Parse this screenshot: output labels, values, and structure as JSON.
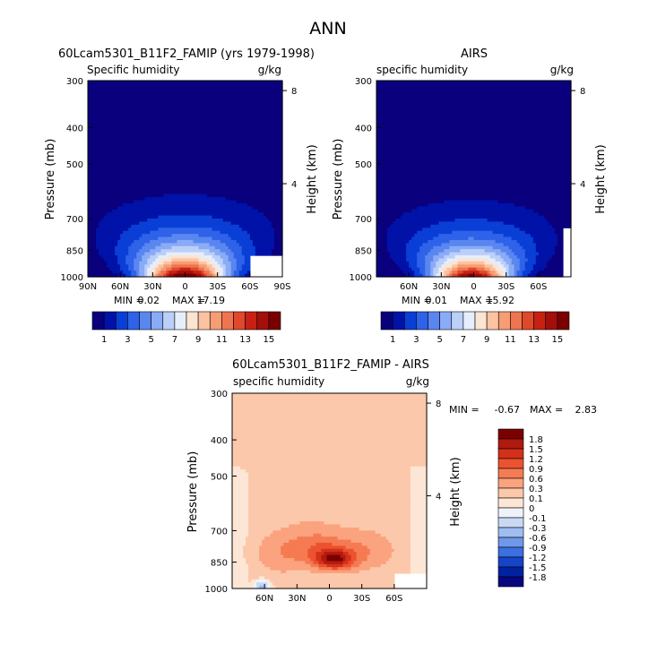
{
  "figure_title": "ANN",
  "chart_data": [
    {
      "type": "heatmap",
      "title": "60Lcam5301_B11F2_FAMIP (yrs 1979-1998)",
      "subtitle_left": "Specific humidity",
      "subtitle_right": "g/kg",
      "ylabel": "Pressure (mb)",
      "ylabel_right": "Height (km)",
      "x_ticks": [
        "90N",
        "60N",
        "30N",
        "0",
        "30S",
        "60S",
        "90S"
      ],
      "x_values": [
        90,
        60,
        30,
        0,
        -30,
        -60,
        -90
      ],
      "y_ticks": [
        "300",
        "400",
        "500",
        "700",
        "850",
        "1000"
      ],
      "y_values": [
        300,
        400,
        500,
        700,
        850,
        1000
      ],
      "y_right_ticks": [
        "8",
        "4"
      ],
      "y_right_values": [
        8,
        4
      ],
      "x_range": [
        90,
        -90
      ],
      "y_range": [
        1000,
        300
      ],
      "min_label": "MIN =",
      "min_value": "0.02",
      "max_label": "MAX =",
      "max_value": "17.19",
      "field": {
        "peak": 17.19,
        "peak_lat": 0,
        "base_width_deg": 26,
        "scale_height_hpa": 240
      },
      "missing_regions": [
        "surface south of 60S"
      ],
      "colorbar": {
        "orientation": "horizontal",
        "labels": [
          "1",
          "3",
          "5",
          "7",
          "9",
          "11",
          "13",
          "15"
        ],
        "levels": [
          1,
          2,
          3,
          4,
          5,
          6,
          7,
          8,
          9,
          10,
          11,
          12,
          13,
          14,
          15
        ],
        "colors": [
          "#0a007e",
          "#0012a8",
          "#0a3fd6",
          "#2e62e8",
          "#5a86f0",
          "#8aabf6",
          "#bbcff9",
          "#e6eefc",
          "#fce4d2",
          "#fbc3a2",
          "#f79d73",
          "#ef7550",
          "#e0482c",
          "#c72114",
          "#a30f0b",
          "#7b0000"
        ]
      }
    },
    {
      "type": "heatmap",
      "title": "AIRS",
      "subtitle_left": "specific humidity",
      "subtitle_right": "g/kg",
      "ylabel": "Pressure (mb)",
      "ylabel_right": "Height (km)",
      "x_ticks": [
        "60N",
        "30N",
        "0",
        "30S",
        "60S"
      ],
      "x_values": [
        60,
        30,
        0,
        -30,
        -60
      ],
      "y_ticks": [
        "300",
        "400",
        "500",
        "700",
        "850",
        "1000"
      ],
      "y_values": [
        300,
        400,
        500,
        700,
        850,
        1000
      ],
      "y_right_ticks": [
        "8",
        "4"
      ],
      "y_right_values": [
        8,
        4
      ],
      "x_range": [
        90,
        -90
      ],
      "y_range": [
        1000,
        300
      ],
      "min_label": "MIN =",
      "min_value": "0.01",
      "max_label": "MAX =",
      "max_value": "15.92",
      "field": {
        "peak": 15.92,
        "peak_lat": 2,
        "base_width_deg": 25,
        "scale_height_hpa": 230
      },
      "missing_regions": [
        "south of 90S edge"
      ],
      "colorbar": {
        "orientation": "horizontal",
        "labels": [
          "1",
          "3",
          "5",
          "7",
          "9",
          "11",
          "13",
          "15"
        ],
        "levels": [
          1,
          2,
          3,
          4,
          5,
          6,
          7,
          8,
          9,
          10,
          11,
          12,
          13,
          14,
          15
        ],
        "colors": [
          "#0a007e",
          "#0012a8",
          "#0a3fd6",
          "#2e62e8",
          "#5a86f0",
          "#8aabf6",
          "#bbcff9",
          "#e6eefc",
          "#fce4d2",
          "#fbc3a2",
          "#f79d73",
          "#ef7550",
          "#e0482c",
          "#c72114",
          "#a30f0b",
          "#7b0000"
        ]
      }
    },
    {
      "type": "heatmap",
      "title": "60Lcam5301_B11F2_FAMIP - AIRS",
      "subtitle_left": "specific humidity",
      "subtitle_right": "g/kg",
      "ylabel": "Pressure (mb)",
      "ylabel_right": "Height (km)",
      "x_ticks": [
        "60N",
        "30N",
        "0",
        "30S",
        "60S"
      ],
      "x_values": [
        60,
        30,
        0,
        -30,
        -60
      ],
      "y_ticks": [
        "300",
        "400",
        "500",
        "700",
        "850",
        "1000"
      ],
      "y_values": [
        300,
        400,
        500,
        700,
        850,
        1000
      ],
      "y_right_ticks": [
        "8",
        "4"
      ],
      "y_right_values": [
        8,
        4
      ],
      "x_range": [
        90,
        -90
      ],
      "y_range": [
        1000,
        300
      ],
      "min_label": "MIN =",
      "min_value": "-0.67",
      "max_label": "MAX =",
      "max_value": "2.83",
      "colorbar": {
        "orientation": "vertical",
        "labels": [
          "1.8",
          "1.5",
          "1.2",
          "0.9",
          "0.6",
          "0.3",
          "0.1",
          "0",
          "-0.1",
          "-0.3",
          "-0.6",
          "-0.9",
          "-1.2",
          "-1.5",
          "-1.8"
        ],
        "levels": [
          1.8,
          1.5,
          1.2,
          0.9,
          0.6,
          0.3,
          0.1,
          0,
          -0.1,
          -0.3,
          -0.6,
          -0.9,
          -1.2,
          -1.5,
          -1.8
        ],
        "colors": [
          "#7b0000",
          "#b01a0f",
          "#d4301a",
          "#ec5230",
          "#f57b52",
          "#fba27e",
          "#fcc8ab",
          "#fde6d6",
          "#eef2fa",
          "#c9d9f5",
          "#9fbdf1",
          "#6f98ea",
          "#3c6fe0",
          "#1444c8",
          "#0022a0",
          "#0a0680"
        ]
      }
    }
  ]
}
